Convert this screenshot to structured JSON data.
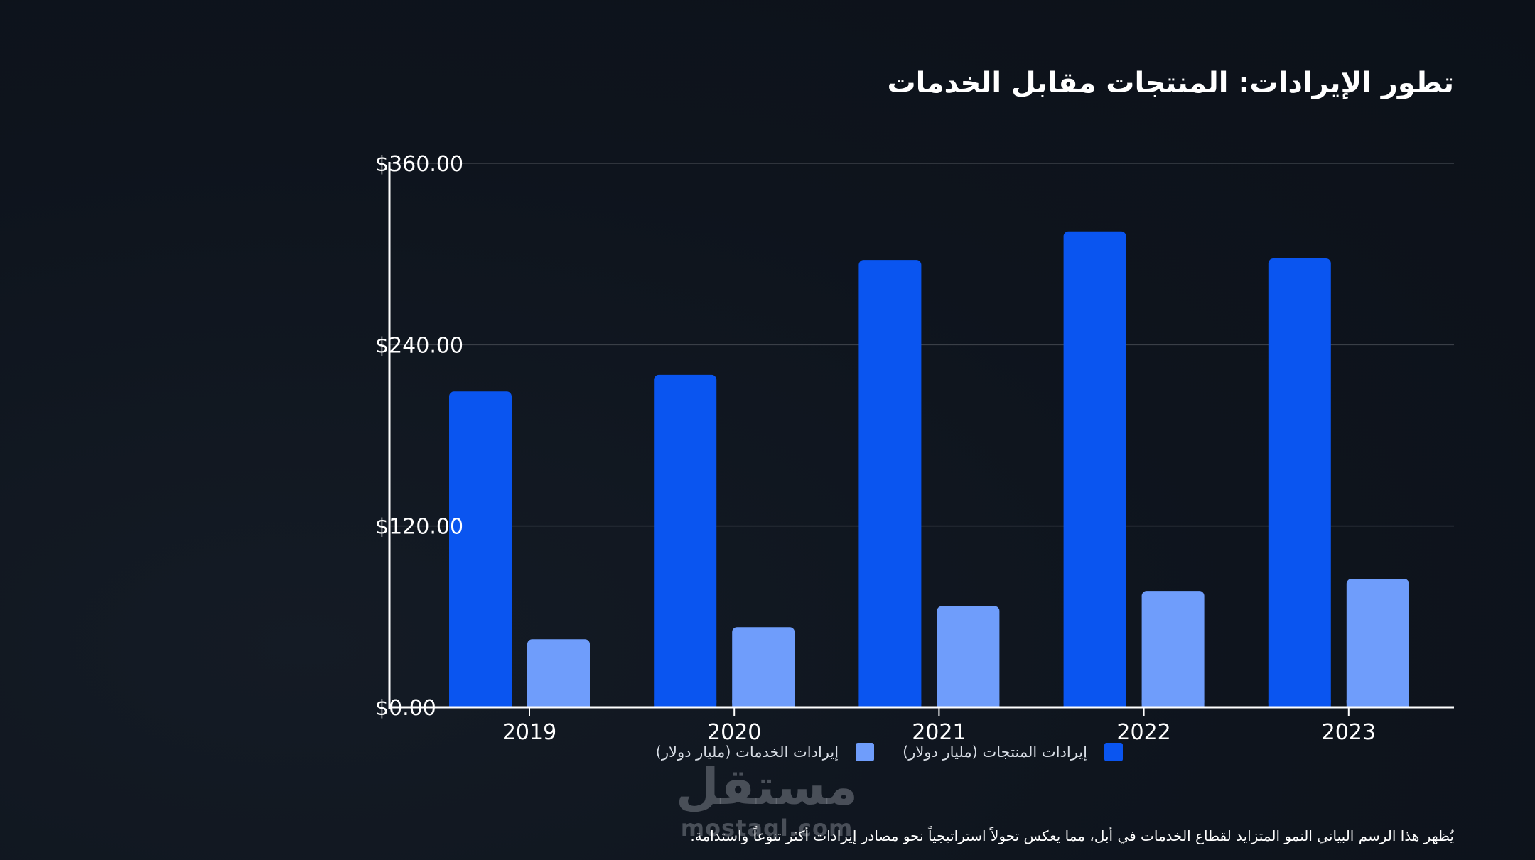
{
  "chart_data": {
    "type": "bar",
    "title": "تطور الإيرادات: المنتجات مقابل الخدمات",
    "categories": [
      "2019",
      "2020",
      "2021",
      "2022",
      "2023"
    ],
    "series": [
      {
        "name": "إيرادات المنتجات (مليار دولار)",
        "color": "#0a55f0",
        "values": [
          209,
          220,
          296,
          315,
          297
        ]
      },
      {
        "name": "إيرادات الخدمات (مليار دولار)",
        "color": "#6f9dfb",
        "values": [
          45,
          53,
          67,
          77,
          85
        ]
      }
    ],
    "ylim": [
      0,
      360
    ],
    "yticks": [
      "$0.00",
      "$120.00",
      "$240.00",
      "$360.00"
    ],
    "ytick_values": [
      0,
      120,
      240,
      360
    ],
    "xlabel": "",
    "ylabel": "",
    "grid": true,
    "legend_position": "bottom",
    "caption": "يُظهر هذا الرسم البياني النمو المتزايد لقطاع الخدمات في أبل، مما يعكس تحولاً استراتيجياً نحو مصادر إيرادات أكثر تنوعاً واستدامة."
  },
  "watermark": {
    "arabic": "مستقل",
    "latin": "mostaql.com"
  },
  "colors": {
    "background": "#0e141d",
    "axis": "#ffffff",
    "grid": "#3a3f47"
  }
}
